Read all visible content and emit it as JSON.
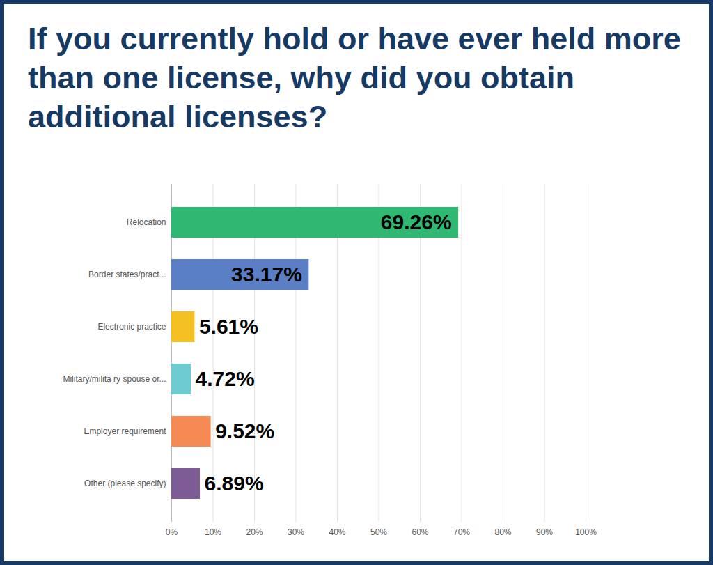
{
  "chart_data": {
    "type": "bar",
    "title": "If you currently hold or have ever held more than one license, why did you obtain additional licenses?",
    "orientation": "horizontal",
    "categories": [
      "Relocation",
      "Border states/pract...",
      "Electronic practice",
      "Military/milita ry spouse or...",
      "Employer requirement",
      "Other (please specify)"
    ],
    "values": [
      69.26,
      33.17,
      5.61,
      4.72,
      9.52,
      6.89
    ],
    "value_labels": [
      "69.26%",
      "33.17%",
      "5.61%",
      "4.72%",
      "9.52%",
      "6.89%"
    ],
    "colors": [
      "#2fb872",
      "#5a7fc4",
      "#f5c022",
      "#6dccd1",
      "#f68a55",
      "#7d5b94"
    ],
    "xlim": [
      0,
      100
    ],
    "xticks": [
      {
        "value": 0,
        "label": "0%"
      },
      {
        "value": 10,
        "label": "10%"
      },
      {
        "value": 20,
        "label": "20%"
      },
      {
        "value": 30,
        "label": "30%"
      },
      {
        "value": 40,
        "label": "40%"
      },
      {
        "value": 50,
        "label": "50%"
      },
      {
        "value": 60,
        "label": "60%"
      },
      {
        "value": 70,
        "label": "70%"
      },
      {
        "value": 80,
        "label": "80%"
      },
      {
        "value": 90,
        "label": "90%"
      },
      {
        "value": 100,
        "label": "100%"
      }
    ],
    "grid": true,
    "data_labels": true
  }
}
